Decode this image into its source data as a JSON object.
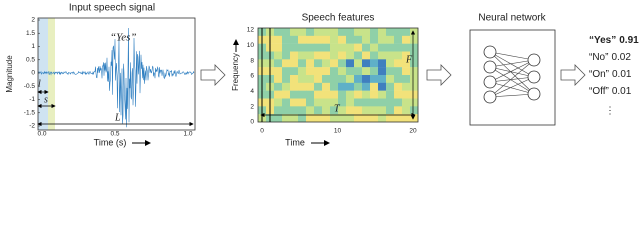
{
  "signal": {
    "title": "Input speech signal",
    "y_label": "Magnitude",
    "x_label": "Time (s)",
    "y_ticks": [
      "2",
      "1.5",
      "1",
      "0.5",
      "0",
      "-0.5",
      "-1",
      "-1.5",
      "-2"
    ],
    "x_ticks": [
      "0.0",
      "0.5",
      "1.0"
    ],
    "annotations": {
      "word": "“Yes”",
      "l": "l",
      "s": "s",
      "L": "L"
    }
  },
  "features": {
    "title": "Speech features",
    "y_label": "Frequency",
    "x_label": "Time",
    "y_ticks": [
      "0",
      "2",
      "4",
      "6",
      "8",
      "10",
      "12"
    ],
    "x_ticks": [
      "0",
      "10",
      "20"
    ],
    "annotations": {
      "F": "F",
      "T": "T"
    }
  },
  "network": {
    "title": "Neural network"
  },
  "outputs": [
    {
      "label": "“Yes”",
      "score": "0.91"
    },
    {
      "label": "“No”",
      "score": "0.02"
    },
    {
      "label": "“On”",
      "score": "0.01"
    },
    {
      "label": "“Off”",
      "score": "0.01"
    }
  ],
  "ellipsis": "⋮"
}
